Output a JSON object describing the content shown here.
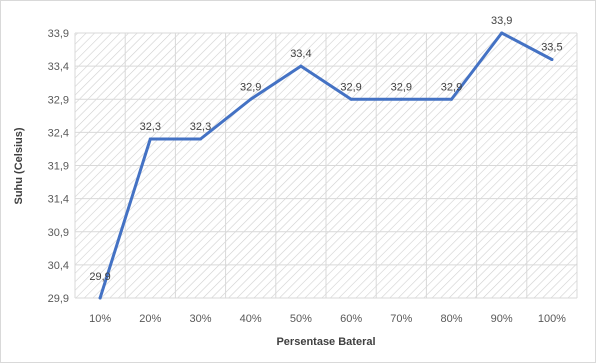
{
  "chart_data": {
    "type": "line",
    "categories": [
      "10%",
      "20%",
      "30%",
      "40%",
      "50%",
      "60%",
      "70%",
      "80%",
      "90%",
      "100%"
    ],
    "series": [
      {
        "values": [
          29.9,
          32.3,
          32.3,
          32.9,
          33.4,
          32.9,
          32.9,
          32.9,
          33.9,
          33.5
        ],
        "data_labels": [
          "29,9",
          "32,3",
          "32,3",
          "32,9",
          "33,4",
          "32,9",
          "32,9",
          "32,9",
          "33,9",
          "33,5"
        ]
      }
    ],
    "xlabel": "Persentase Bateral",
    "ylabel": "Suhu (Celsius)",
    "ylim": [
      29.9,
      33.9
    ],
    "yticks": [
      29.9,
      30.4,
      30.9,
      31.4,
      31.9,
      32.4,
      32.9,
      33.4,
      33.9
    ],
    "ytick_labels": [
      "29,9",
      "30,4",
      "30,9",
      "31,4",
      "31,9",
      "32,4",
      "32,9",
      "33,4",
      "33,9"
    ],
    "grid": true,
    "line_color": "#4472c4",
    "plot_area_pattern": "diagonal-hatch"
  }
}
